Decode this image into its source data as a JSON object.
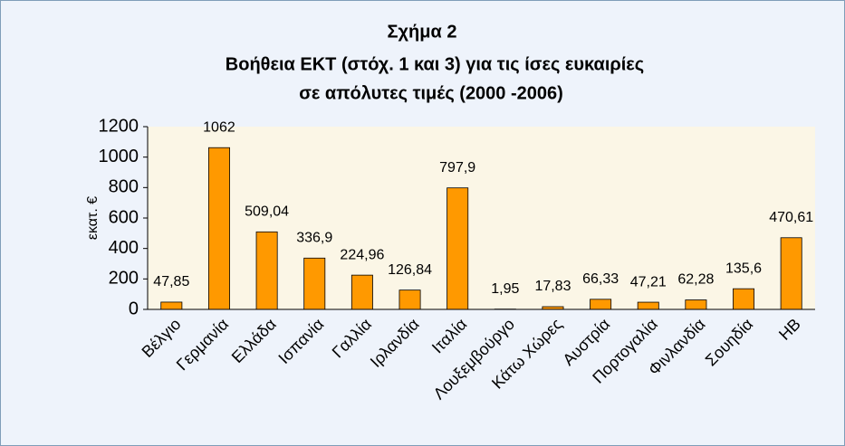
{
  "chart_data": {
    "type": "bar",
    "title": [
      "Σχήμα 2",
      "Βοήθεια ΕΚΤ (στόχ. 1 και 3) για τις ίσες ευκαιρίες",
      "σε απόλυτες τιμές (2000 -2006)"
    ],
    "ylabel": "εκατ. €",
    "categories": [
      "Βέλγιο",
      "Γερμανία",
      "Ελλάδα",
      "Ισπανία",
      "Γαλλία",
      "Ιρλανδία",
      "Ιταλία",
      "Λουξεμβούργο",
      "Κάτω Χώρες",
      "Αυστρία",
      "Πορτογαλία",
      "Φινλανδία",
      "Σουηδία",
      "ΗΒ"
    ],
    "values": [
      47.85,
      1062,
      509.04,
      336.9,
      224.96,
      126.84,
      797.9,
      1.95,
      17.83,
      66.33,
      47.21,
      62.28,
      135.6,
      470.61
    ],
    "value_labels": [
      "47,85",
      "1062",
      "509,04",
      "336,9",
      "224,96",
      "126,84",
      "797,9",
      "1,95",
      "17,83",
      "66,33",
      "47,21",
      "62,28",
      "135,6",
      "470,61"
    ],
    "color": "#ff9900",
    "ylim": [
      0,
      1200
    ],
    "yticks": [
      0,
      200,
      400,
      600,
      800,
      1000,
      1200
    ],
    "grid": false
  }
}
